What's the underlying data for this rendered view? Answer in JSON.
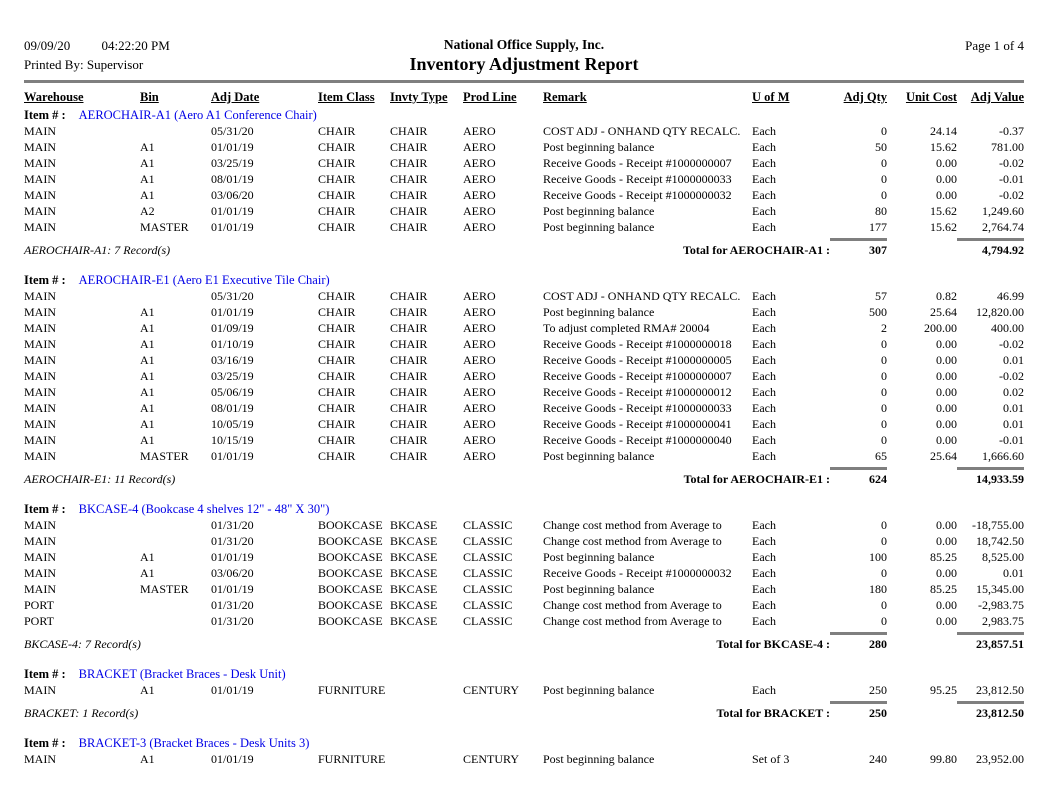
{
  "colors": {
    "link_blue": "#0000E6",
    "rule_gray": "#7F7F7F",
    "text": "#000000",
    "background": "#FFFFFF"
  },
  "page_header": {
    "date": "09/09/20",
    "time": "04:22:20 PM",
    "printed_by": "Printed By: Supervisor",
    "company": "National Office Supply, Inc.",
    "report_title": "Inventory Adjustment Report",
    "page_label": "Page 1 of  4"
  },
  "table": {
    "item_label": "Item # :",
    "columns": [
      "Warehouse",
      "Bin",
      "Adj Date",
      "Item Class",
      "Invty Type",
      "Prod Line",
      "Remark",
      "U of M",
      "Adj Qty",
      "Unit Cost",
      "Adj Value"
    ],
    "groups": [
      {
        "item_name": "AEROCHAIR-A1 (Aero A1 Conference Chair)",
        "rows": [
          [
            "MAIN",
            "",
            "05/31/20",
            "CHAIR",
            "CHAIR",
            "AERO",
            "COST ADJ - ONHAND QTY RECALC.",
            "Each",
            "0",
            "24.14",
            "-0.37"
          ],
          [
            "MAIN",
            "A1",
            "01/01/19",
            "CHAIR",
            "CHAIR",
            "AERO",
            "Post beginning balance",
            "Each",
            "50",
            "15.62",
            "781.00"
          ],
          [
            "MAIN",
            "A1",
            "03/25/19",
            "CHAIR",
            "CHAIR",
            "AERO",
            "Receive Goods - Receipt #1000000007",
            "Each",
            "0",
            "0.00",
            "-0.02"
          ],
          [
            "MAIN",
            "A1",
            "08/01/19",
            "CHAIR",
            "CHAIR",
            "AERO",
            "Receive Goods - Receipt #1000000033",
            "Each",
            "0",
            "0.00",
            "-0.01"
          ],
          [
            "MAIN",
            "A1",
            "03/06/20",
            "CHAIR",
            "CHAIR",
            "AERO",
            "Receive Goods - Receipt #1000000032",
            "Each",
            "0",
            "0.00",
            "-0.02"
          ],
          [
            "MAIN",
            "A2",
            "01/01/19",
            "CHAIR",
            "CHAIR",
            "AERO",
            "Post beginning balance",
            "Each",
            "80",
            "15.62",
            "1,249.60"
          ],
          [
            "MAIN",
            "MASTER",
            "01/01/19",
            "CHAIR",
            "CHAIR",
            "AERO",
            "Post beginning balance",
            "Each",
            "177",
            "15.62",
            "2,764.74"
          ]
        ],
        "records_label": "AEROCHAIR-A1: 7 Record(s)",
        "total_label": "Total for AEROCHAIR-A1 :",
        "total_qty": "307",
        "total_value": "4,794.92"
      },
      {
        "item_name": "AEROCHAIR-E1 (Aero E1 Executive Tile Chair)",
        "rows": [
          [
            "MAIN",
            "",
            "05/31/20",
            "CHAIR",
            "CHAIR",
            "AERO",
            "COST ADJ - ONHAND QTY RECALC.",
            "Each",
            "57",
            "0.82",
            "46.99"
          ],
          [
            "MAIN",
            "A1",
            "01/01/19",
            "CHAIR",
            "CHAIR",
            "AERO",
            "Post beginning balance",
            "Each",
            "500",
            "25.64",
            "12,820.00"
          ],
          [
            "MAIN",
            "A1",
            "01/09/19",
            "CHAIR",
            "CHAIR",
            "AERO",
            "To adjust completed RMA# 20004",
            "Each",
            "2",
            "200.00",
            "400.00"
          ],
          [
            "MAIN",
            "A1",
            "01/10/19",
            "CHAIR",
            "CHAIR",
            "AERO",
            "Receive Goods - Receipt #1000000018",
            "Each",
            "0",
            "0.00",
            "-0.02"
          ],
          [
            "MAIN",
            "A1",
            "03/16/19",
            "CHAIR",
            "CHAIR",
            "AERO",
            "Receive Goods - Receipt #1000000005",
            "Each",
            "0",
            "0.00",
            "0.01"
          ],
          [
            "MAIN",
            "A1",
            "03/25/19",
            "CHAIR",
            "CHAIR",
            "AERO",
            "Receive Goods - Receipt #1000000007",
            "Each",
            "0",
            "0.00",
            "-0.02"
          ],
          [
            "MAIN",
            "A1",
            "05/06/19",
            "CHAIR",
            "CHAIR",
            "AERO",
            "Receive Goods - Receipt #1000000012",
            "Each",
            "0",
            "0.00",
            "0.02"
          ],
          [
            "MAIN",
            "A1",
            "08/01/19",
            "CHAIR",
            "CHAIR",
            "AERO",
            "Receive Goods - Receipt #1000000033",
            "Each",
            "0",
            "0.00",
            "0.01"
          ],
          [
            "MAIN",
            "A1",
            "10/05/19",
            "CHAIR",
            "CHAIR",
            "AERO",
            "Receive Goods - Receipt #1000000041",
            "Each",
            "0",
            "0.00",
            "0.01"
          ],
          [
            "MAIN",
            "A1",
            "10/15/19",
            "CHAIR",
            "CHAIR",
            "AERO",
            "Receive Goods - Receipt #1000000040",
            "Each",
            "0",
            "0.00",
            "-0.01"
          ],
          [
            "MAIN",
            "MASTER",
            "01/01/19",
            "CHAIR",
            "CHAIR",
            "AERO",
            "Post beginning balance",
            "Each",
            "65",
            "25.64",
            "1,666.60"
          ]
        ],
        "records_label": "AEROCHAIR-E1: 11 Record(s)",
        "total_label": "Total for AEROCHAIR-E1 :",
        "total_qty": "624",
        "total_value": "14,933.59"
      },
      {
        "item_name": "BKCASE-4 (Bookcase 4 shelves 12\" - 48\" X 30\")",
        "rows": [
          [
            "MAIN",
            "",
            "01/31/20",
            "BOOKCASE",
            "BKCASE",
            "CLASSIC",
            "Change cost method from Average to",
            "Each",
            "0",
            "0.00",
            "-18,755.00"
          ],
          [
            "MAIN",
            "",
            "01/31/20",
            "BOOKCASE",
            "BKCASE",
            "CLASSIC",
            "Change cost method from Average to",
            "Each",
            "0",
            "0.00",
            "18,742.50"
          ],
          [
            "MAIN",
            "A1",
            "01/01/19",
            "BOOKCASE",
            "BKCASE",
            "CLASSIC",
            "Post beginning balance",
            "Each",
            "100",
            "85.25",
            "8,525.00"
          ],
          [
            "MAIN",
            "A1",
            "03/06/20",
            "BOOKCASE",
            "BKCASE",
            "CLASSIC",
            "Receive Goods - Receipt #1000000032",
            "Each",
            "0",
            "0.00",
            "0.01"
          ],
          [
            "MAIN",
            "MASTER",
            "01/01/19",
            "BOOKCASE",
            "BKCASE",
            "CLASSIC",
            "Post beginning balance",
            "Each",
            "180",
            "85.25",
            "15,345.00"
          ],
          [
            "PORT",
            "",
            "01/31/20",
            "BOOKCASE",
            "BKCASE",
            "CLASSIC",
            "Change cost method from Average to",
            "Each",
            "0",
            "0.00",
            "-2,983.75"
          ],
          [
            "PORT",
            "",
            "01/31/20",
            "BOOKCASE",
            "BKCASE",
            "CLASSIC",
            "Change cost method from Average to",
            "Each",
            "0",
            "0.00",
            "2,983.75"
          ]
        ],
        "records_label": "BKCASE-4: 7 Record(s)",
        "total_label": "Total for BKCASE-4 :",
        "total_qty": "280",
        "total_value": "23,857.51"
      },
      {
        "item_name": "BRACKET (Bracket Braces - Desk Unit)",
        "rows": [
          [
            "MAIN",
            "A1",
            "01/01/19",
            "FURNITURE",
            "",
            "CENTURY",
            "Post beginning balance",
            "Each",
            "250",
            "95.25",
            "23,812.50"
          ]
        ],
        "records_label": "BRACKET: 1 Record(s)",
        "total_label": "Total for BRACKET :",
        "total_qty": "250",
        "total_value": "23,812.50"
      },
      {
        "item_name": "BRACKET-3 (Bracket Braces - Desk Units 3)",
        "rows": [
          [
            "MAIN",
            "A1",
            "01/01/19",
            "FURNITURE",
            "",
            "CENTURY",
            "Post beginning balance",
            "Set of 3",
            "240",
            "99.80",
            "23,952.00"
          ]
        ]
      }
    ]
  }
}
